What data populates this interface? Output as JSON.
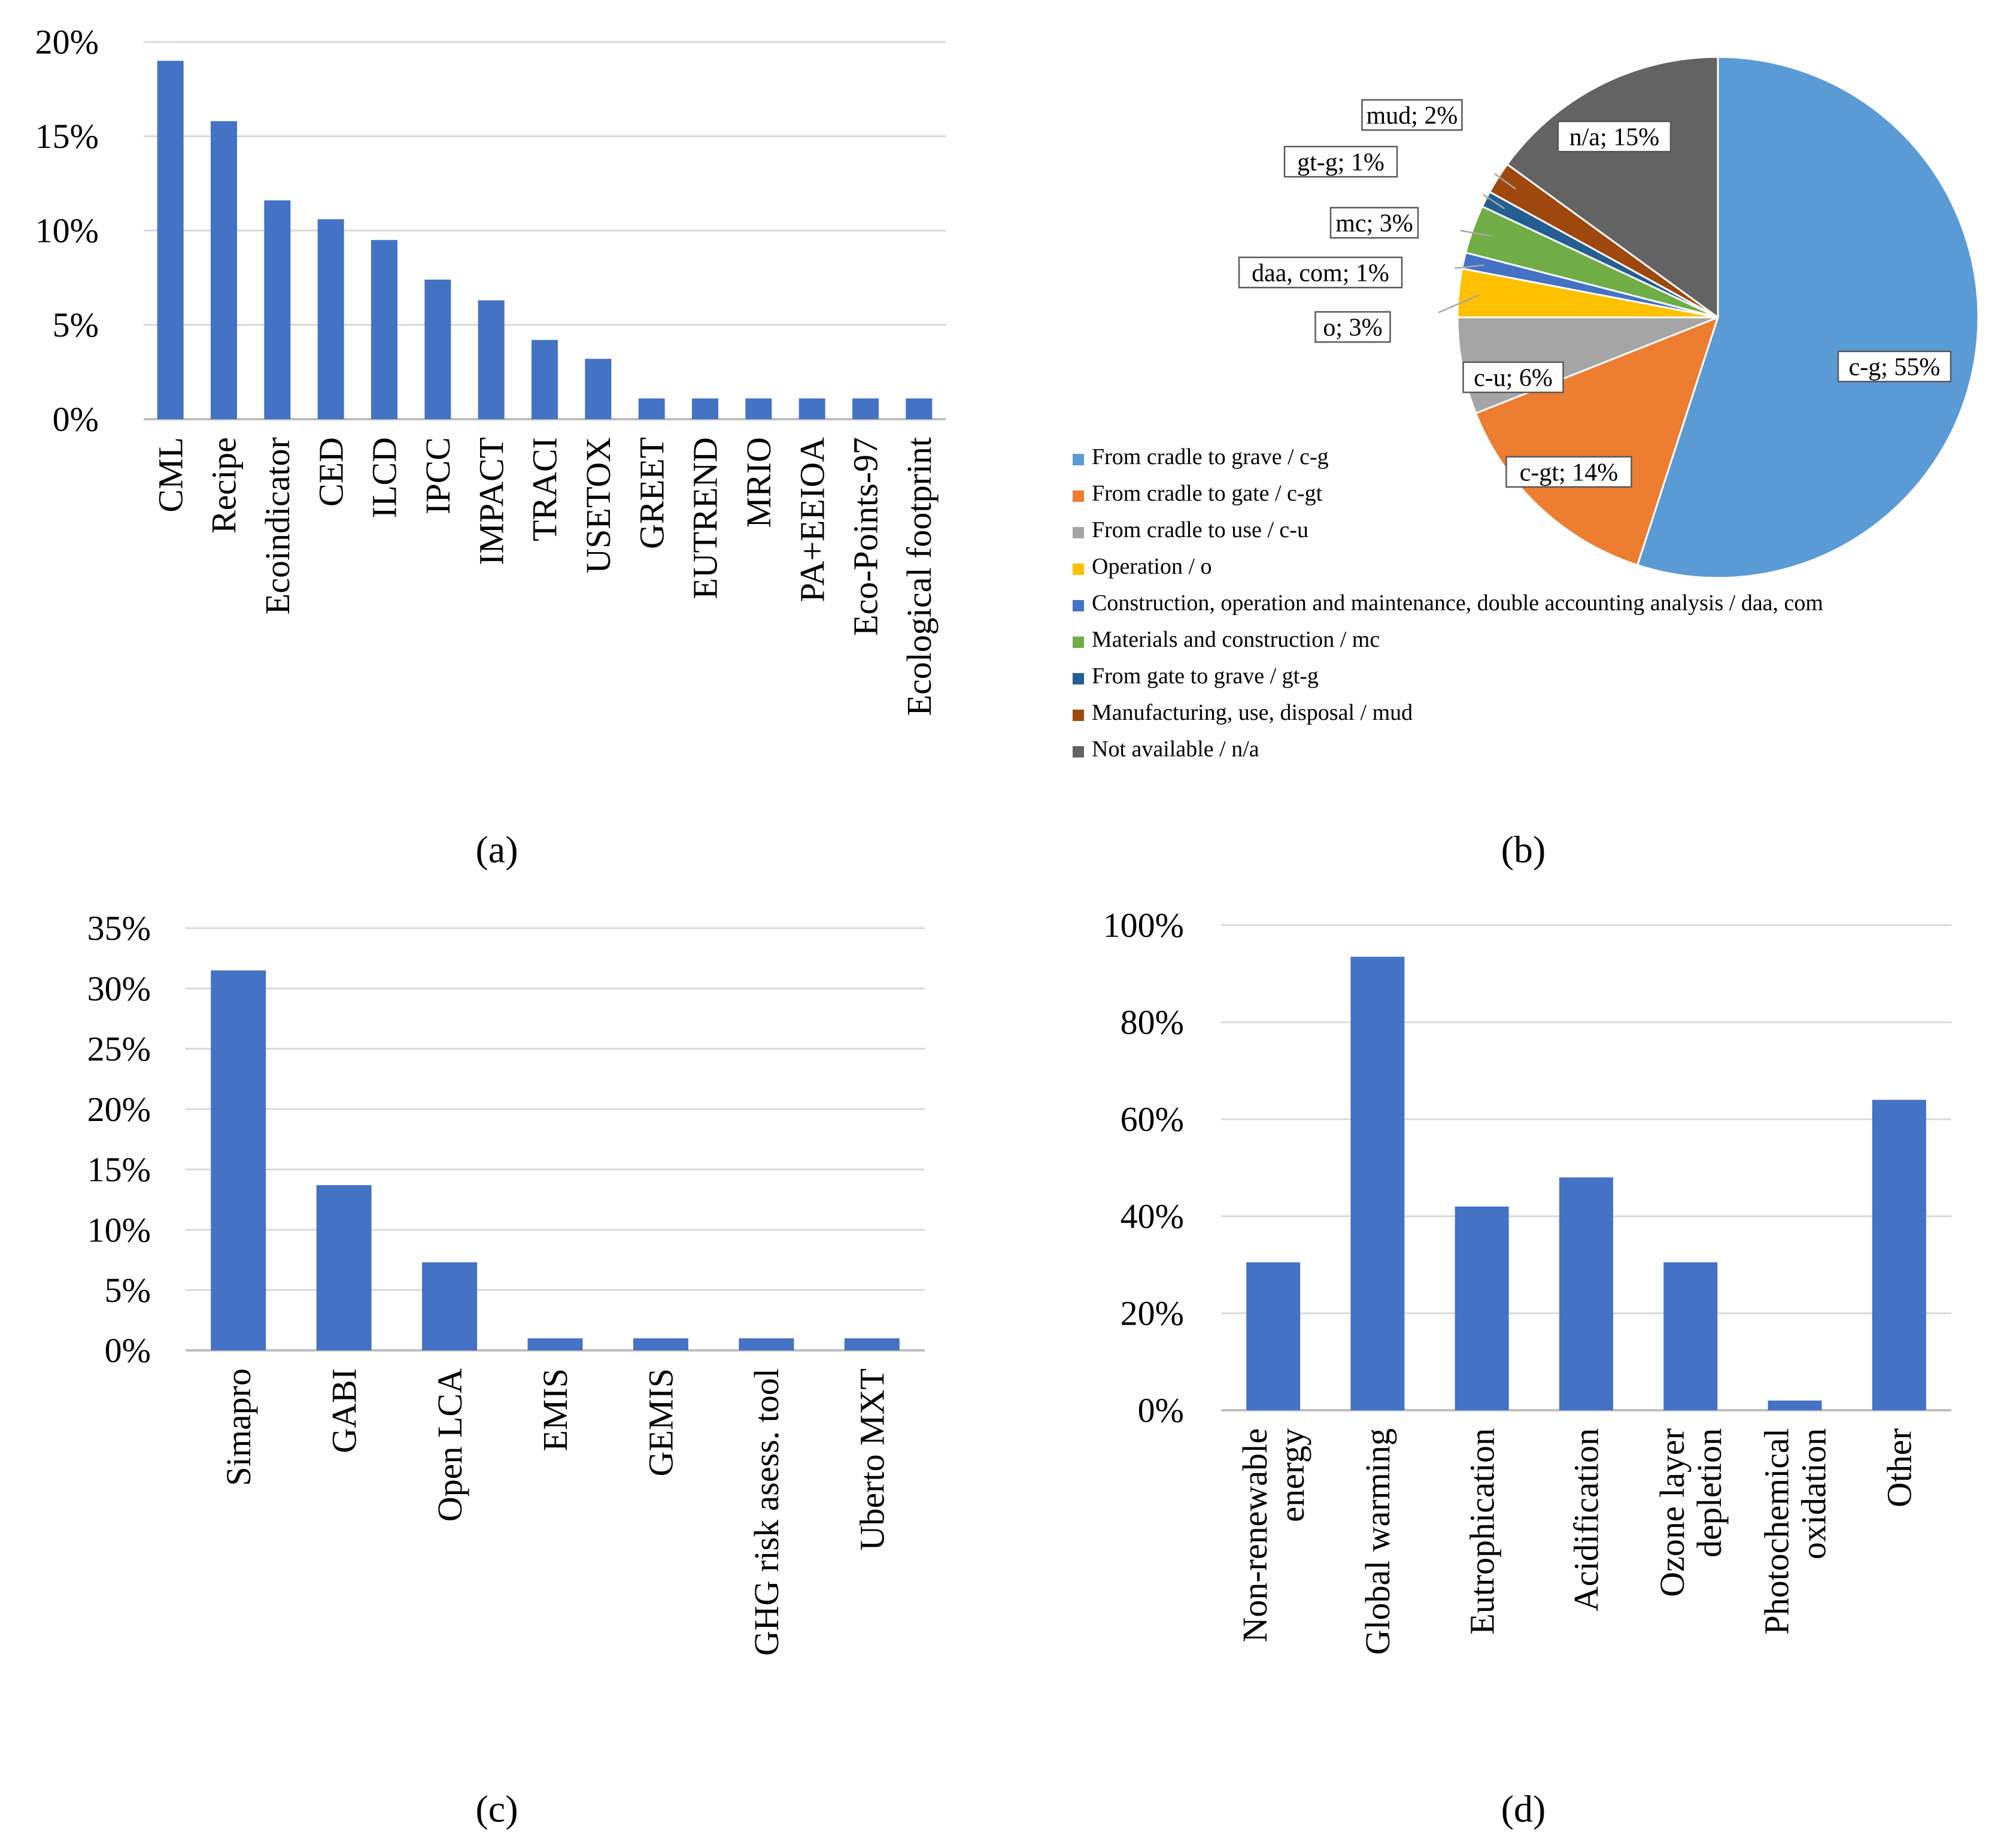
{
  "colors": {
    "bar": "#4472C4",
    "grid": "#D9D9D9",
    "axis": "#BFBFBF",
    "text": "#000000"
  },
  "panel_labels": [
    "(a)",
    "(b)",
    "(c)",
    "(d)"
  ],
  "chart_data": [
    {
      "id": "a",
      "type": "bar",
      "categories": [
        "CML",
        "Recipe",
        "Ecoindicator",
        "CED",
        "ILCD",
        "IPCC",
        "IMPACT",
        "TRACI",
        "USETOX",
        "GREET",
        "EUTREND",
        "MRIO",
        "PA+EEIOA",
        "Eco-Points-97",
        "Ecological footprint"
      ],
      "values": [
        19.0,
        15.8,
        11.6,
        10.6,
        9.5,
        7.4,
        6.3,
        4.2,
        3.2,
        1.1,
        1.1,
        1.1,
        1.1,
        1.1,
        1.1
      ],
      "ylim": [
        0,
        20
      ],
      "yticks": [
        0,
        5,
        10,
        15,
        20
      ],
      "ytick_labels": [
        "0%",
        "5%",
        "10%",
        "15%",
        "20%"
      ],
      "title": "",
      "xlabel": "",
      "ylabel": "",
      "grid": true
    },
    {
      "id": "b",
      "type": "pie",
      "slices": [
        {
          "key": "c-g",
          "label": "c-g; 55%",
          "value": 55,
          "color": "#5B9BD5",
          "legend": "From cradle to grave / c-g"
        },
        {
          "key": "c-gt",
          "label": "c-gt; 14%",
          "value": 14,
          "color": "#ED7D31",
          "legend": "From cradle to gate / c-gt"
        },
        {
          "key": "c-u",
          "label": "c-u; 6%",
          "value": 6,
          "color": "#A5A5A5",
          "legend": "From cradle to use / c-u"
        },
        {
          "key": "o",
          "label": "o; 3%",
          "value": 3,
          "color": "#FFC000",
          "legend": "Operation / o"
        },
        {
          "key": "daa-com",
          "label": "daa, com; 1%",
          "value": 1,
          "color": "#4472C4",
          "legend": "Construction, operation and maintenance, double accounting analysis / daa, com"
        },
        {
          "key": "mc",
          "label": "mc; 3%",
          "value": 3,
          "color": "#70AD47",
          "legend": "Materials and construction / mc"
        },
        {
          "key": "gt-g",
          "label": "gt-g; 1%",
          "value": 1,
          "color": "#255E91",
          "legend": "From gate to grave / gt-g"
        },
        {
          "key": "mud",
          "label": "mud; 2%",
          "value": 2,
          "color": "#9E480E",
          "legend": "Manufacturing, use, disposal / mud"
        },
        {
          "key": "na",
          "label": "n/a; 15%",
          "value": 15,
          "color": "#636363",
          "legend": "Not available / n/a"
        }
      ],
      "legend_position": "bottom-left"
    },
    {
      "id": "c",
      "type": "bar",
      "categories": [
        "Simapro",
        "GABI",
        "Open LCA",
        "EMIS",
        "GEMIS",
        "GHG risk asess. tool",
        "Uberto MXT"
      ],
      "values": [
        31.5,
        13.7,
        7.3,
        1.0,
        1.0,
        1.0,
        1.0
      ],
      "ylim": [
        0,
        35
      ],
      "yticks": [
        0,
        5,
        10,
        15,
        20,
        25,
        30,
        35
      ],
      "ytick_labels": [
        "0%",
        "5%",
        "10%",
        "15%",
        "20%",
        "25%",
        "30%",
        "35%"
      ],
      "title": "",
      "xlabel": "",
      "ylabel": "",
      "grid": true
    },
    {
      "id": "d",
      "type": "bar",
      "categories": [
        [
          "Non-renewable",
          "energy"
        ],
        [
          "Global warming"
        ],
        [
          "Eutrophication"
        ],
        [
          "Acidification"
        ],
        [
          "Ozone layer",
          "depletion"
        ],
        [
          "Photochemical",
          "oxidation"
        ],
        [
          "Other"
        ]
      ],
      "values": [
        30.5,
        93.5,
        42.0,
        48.0,
        30.5,
        2.0,
        64.0
      ],
      "ylim": [
        0,
        100
      ],
      "yticks": [
        0,
        20,
        40,
        60,
        80,
        100
      ],
      "ytick_labels": [
        "0%",
        "20%",
        "40%",
        "60%",
        "80%",
        "100%"
      ],
      "title": "",
      "xlabel": "",
      "ylabel": "",
      "grid": true
    }
  ]
}
